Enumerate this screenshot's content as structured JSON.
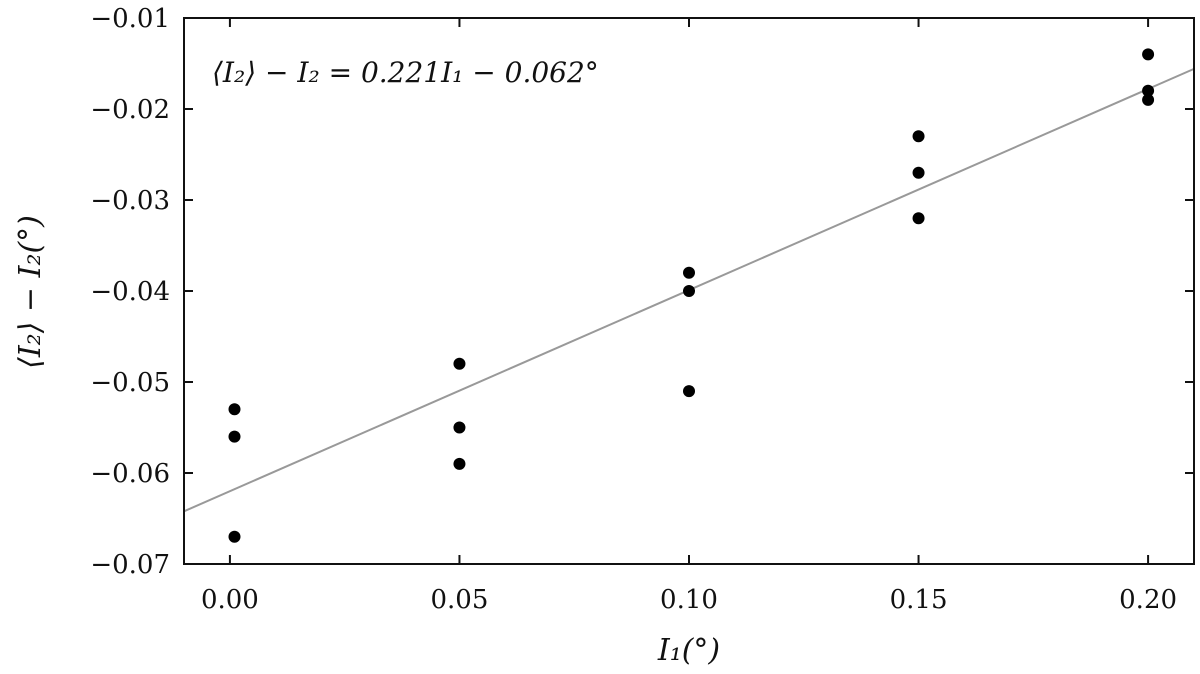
{
  "chart_data": {
    "type": "scatter",
    "title": "",
    "xlabel": "I₁(°)",
    "ylabel": "⟨I₂⟩ − I₂(°)",
    "xlim": [
      -0.01,
      0.21
    ],
    "ylim": [
      -0.07,
      -0.01
    ],
    "x_ticks": [
      0.0,
      0.05,
      0.1,
      0.15,
      0.2
    ],
    "x_tick_labels": [
      "0.00",
      "0.05",
      "0.10",
      "0.15",
      "0.20"
    ],
    "y_ticks": [
      -0.07,
      -0.06,
      -0.05,
      -0.04,
      -0.03,
      -0.02,
      -0.01
    ],
    "y_tick_labels": [
      "−0.07",
      "−0.06",
      "−0.05",
      "−0.04",
      "−0.03",
      "−0.02",
      "−0.01"
    ],
    "grid": false,
    "annotation": "⟨I₂⟩ − I₂ = 0.221I₁ − 0.062°",
    "points": [
      {
        "x": 0.001,
        "y": -0.053
      },
      {
        "x": 0.001,
        "y": -0.056
      },
      {
        "x": 0.001,
        "y": -0.067
      },
      {
        "x": 0.05,
        "y": -0.048
      },
      {
        "x": 0.05,
        "y": -0.055
      },
      {
        "x": 0.05,
        "y": -0.059
      },
      {
        "x": 0.1,
        "y": -0.038
      },
      {
        "x": 0.1,
        "y": -0.04
      },
      {
        "x": 0.1,
        "y": -0.051
      },
      {
        "x": 0.15,
        "y": -0.023
      },
      {
        "x": 0.15,
        "y": -0.027
      },
      {
        "x": 0.15,
        "y": -0.032
      },
      {
        "x": 0.2,
        "y": -0.014
      },
      {
        "x": 0.2,
        "y": -0.018
      },
      {
        "x": 0.2,
        "y": -0.019
      }
    ],
    "fit": {
      "slope": 0.221,
      "intercept": -0.062
    },
    "colors": {
      "points": "#000000",
      "fit_line": "#999999",
      "axes": "#111111"
    }
  }
}
